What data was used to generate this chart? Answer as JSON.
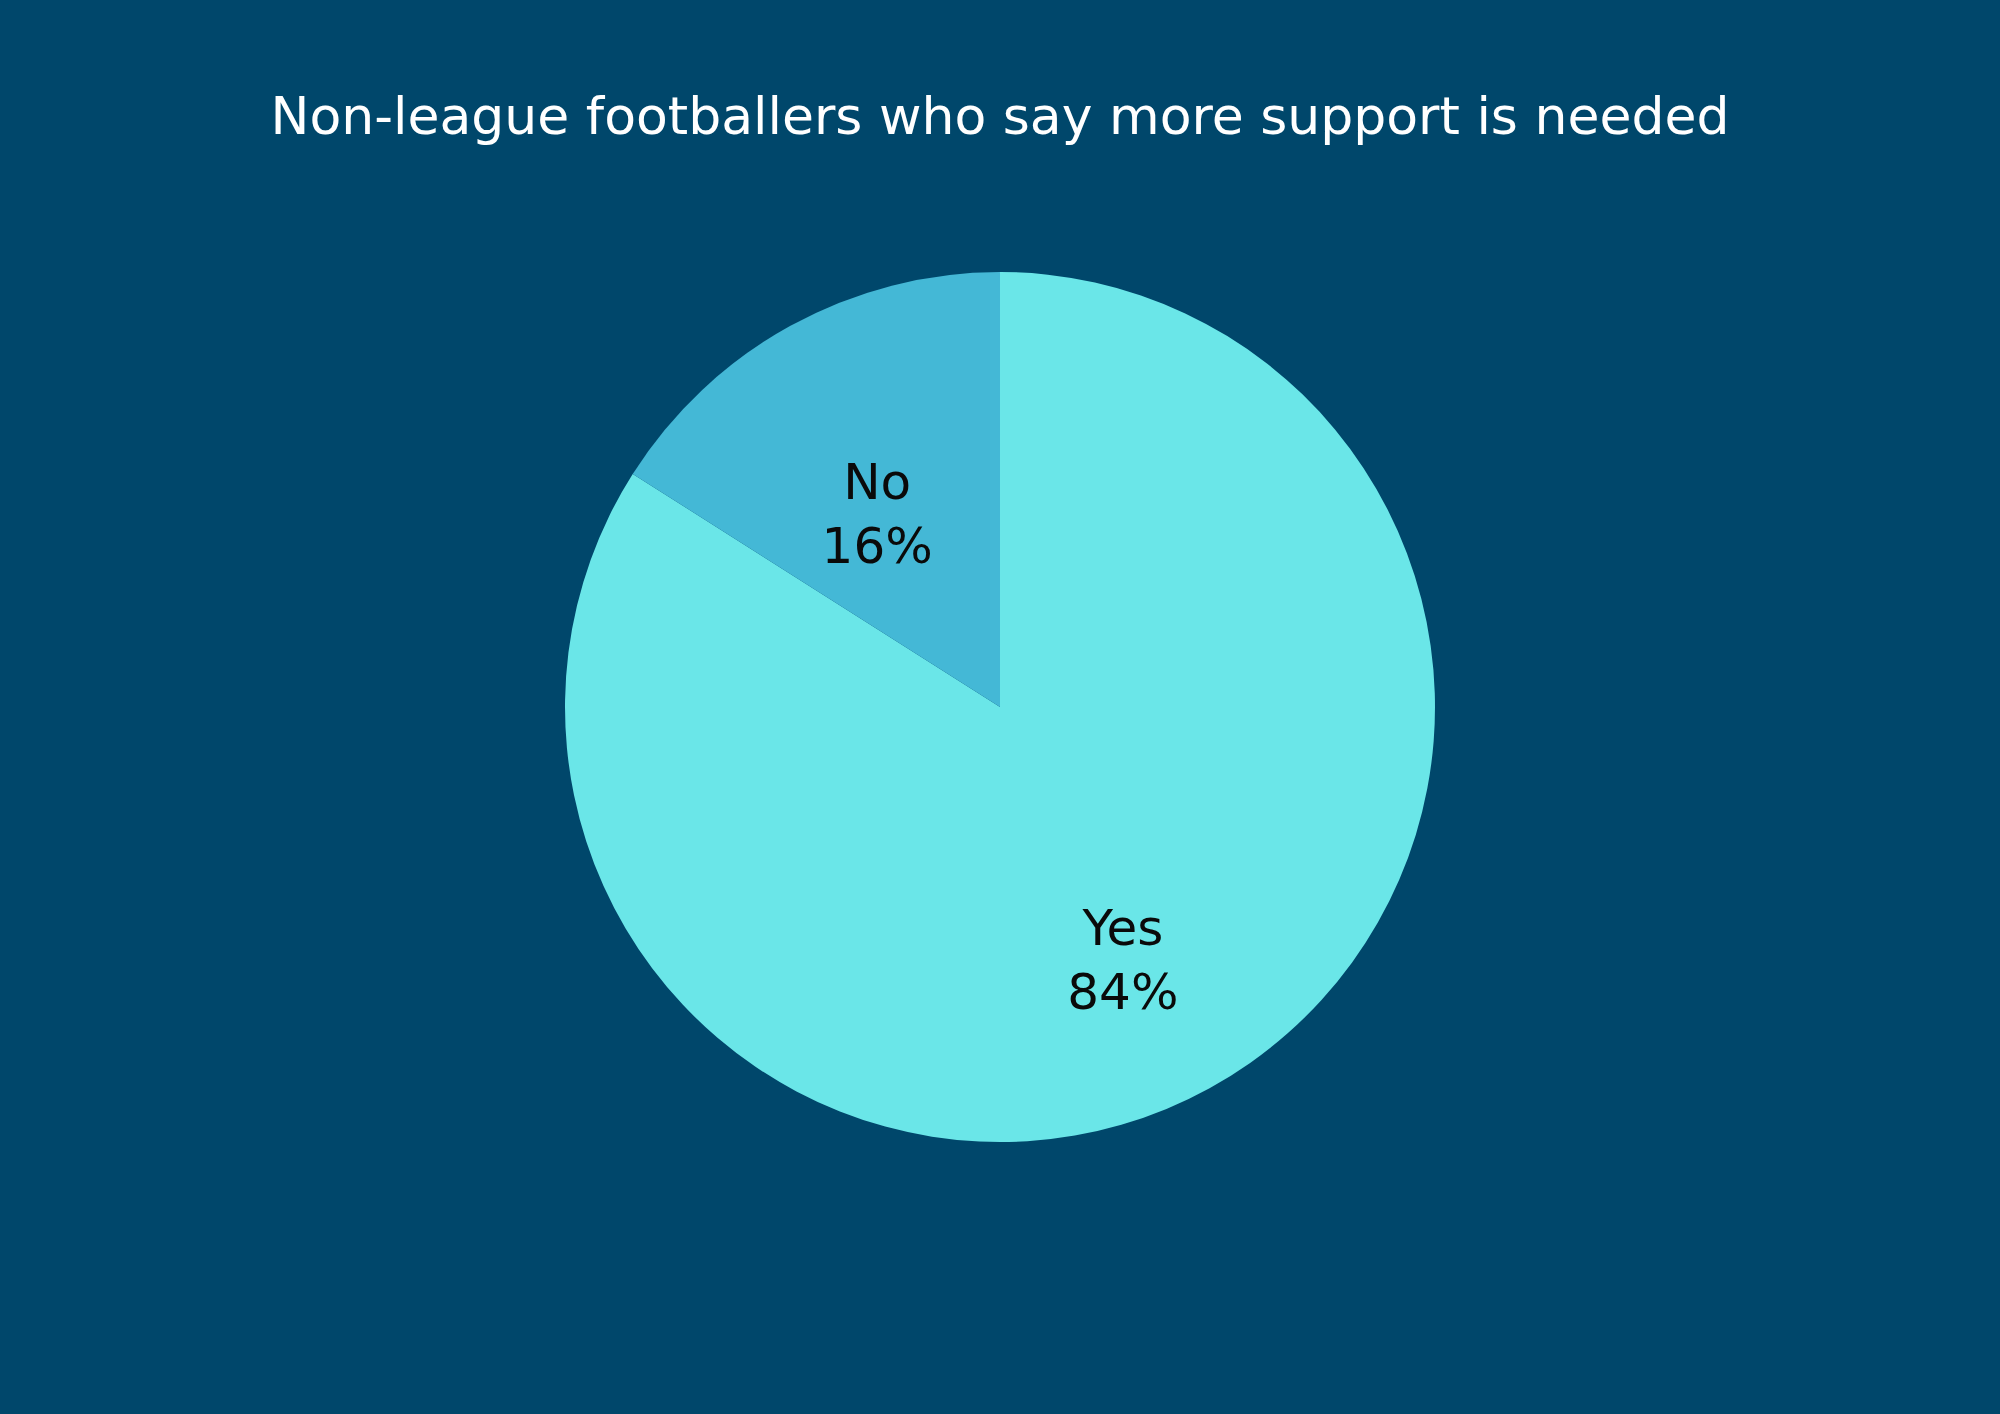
{
  "chart_data": {
    "type": "pie",
    "title": "Non-league footballers who say more support is needed",
    "categories": [
      "Yes",
      "No"
    ],
    "values": [
      84,
      16
    ],
    "value_labels": [
      "84%",
      "16%"
    ],
    "colors": [
      "#6ae6e8",
      "#44b8d6"
    ],
    "legend": false
  }
}
